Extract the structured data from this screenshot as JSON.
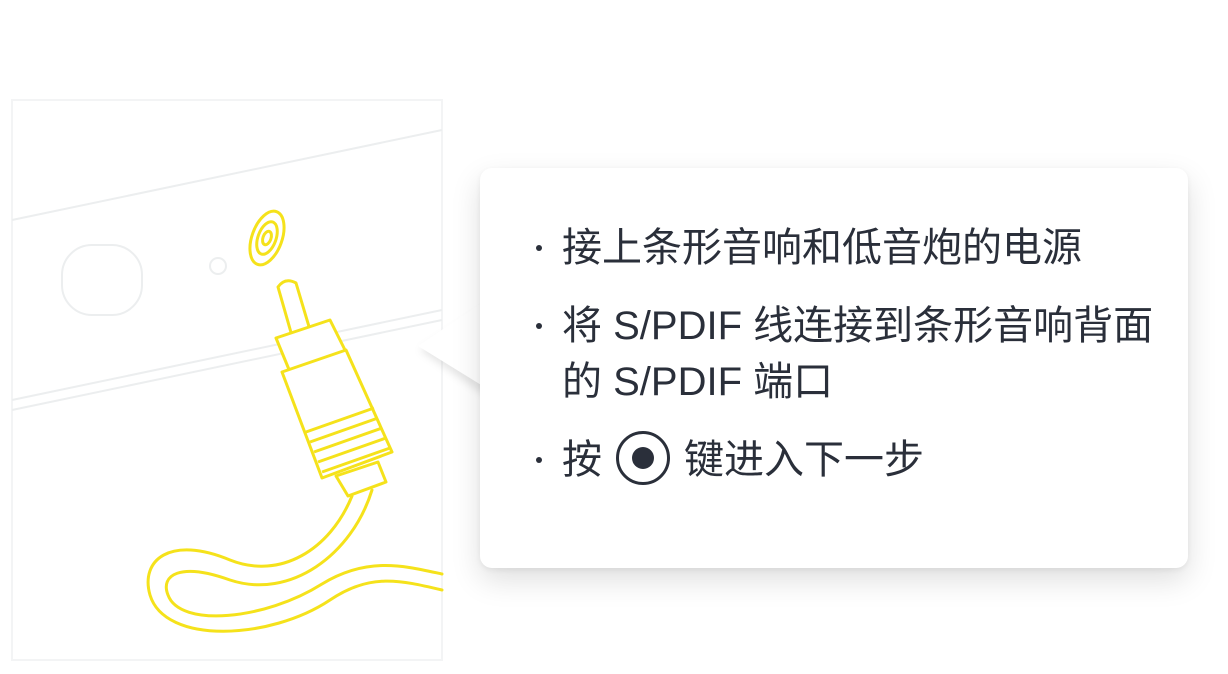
{
  "steps": [
    {
      "text": "接上条形音响和低音炮的电源"
    },
    {
      "text": "将 S/PDIF 线连接到条形音响背面的 S/PDIF 端口"
    },
    {
      "before": "按",
      "key_icon": "ok-button-icon",
      "after": "键进入下一步"
    }
  ],
  "colors": {
    "cable": "#f5e21b",
    "text": "#2a2f3a",
    "device_outline": "#e6e8ea"
  }
}
